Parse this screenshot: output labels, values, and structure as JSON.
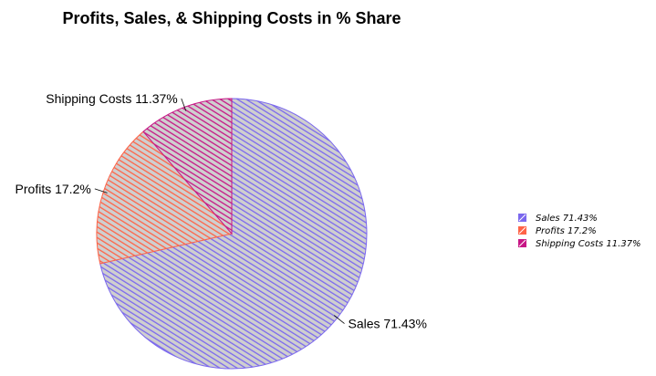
{
  "chart_data": {
    "type": "pie",
    "title": "Profits, Sales, & Shipping Costs in % Share",
    "slices": [
      {
        "label": "Sales 71.43%",
        "legend": "Sales 71.43%",
        "value": 71.43,
        "color": "#7B68EE"
      },
      {
        "label": "Profits 17.2%",
        "legend": "Profits 17.2%",
        "value": 17.2,
        "color": "#FF6347"
      },
      {
        "label": "Shipping Costs 11.37%",
        "legend": "Shipping Costs 11.37%",
        "value": 11.37,
        "color": "#C71585"
      }
    ],
    "start": "12 o'clock",
    "direction": "clockwise",
    "fill_style": "hand-drawn hatching",
    "legend_position": "right"
  }
}
